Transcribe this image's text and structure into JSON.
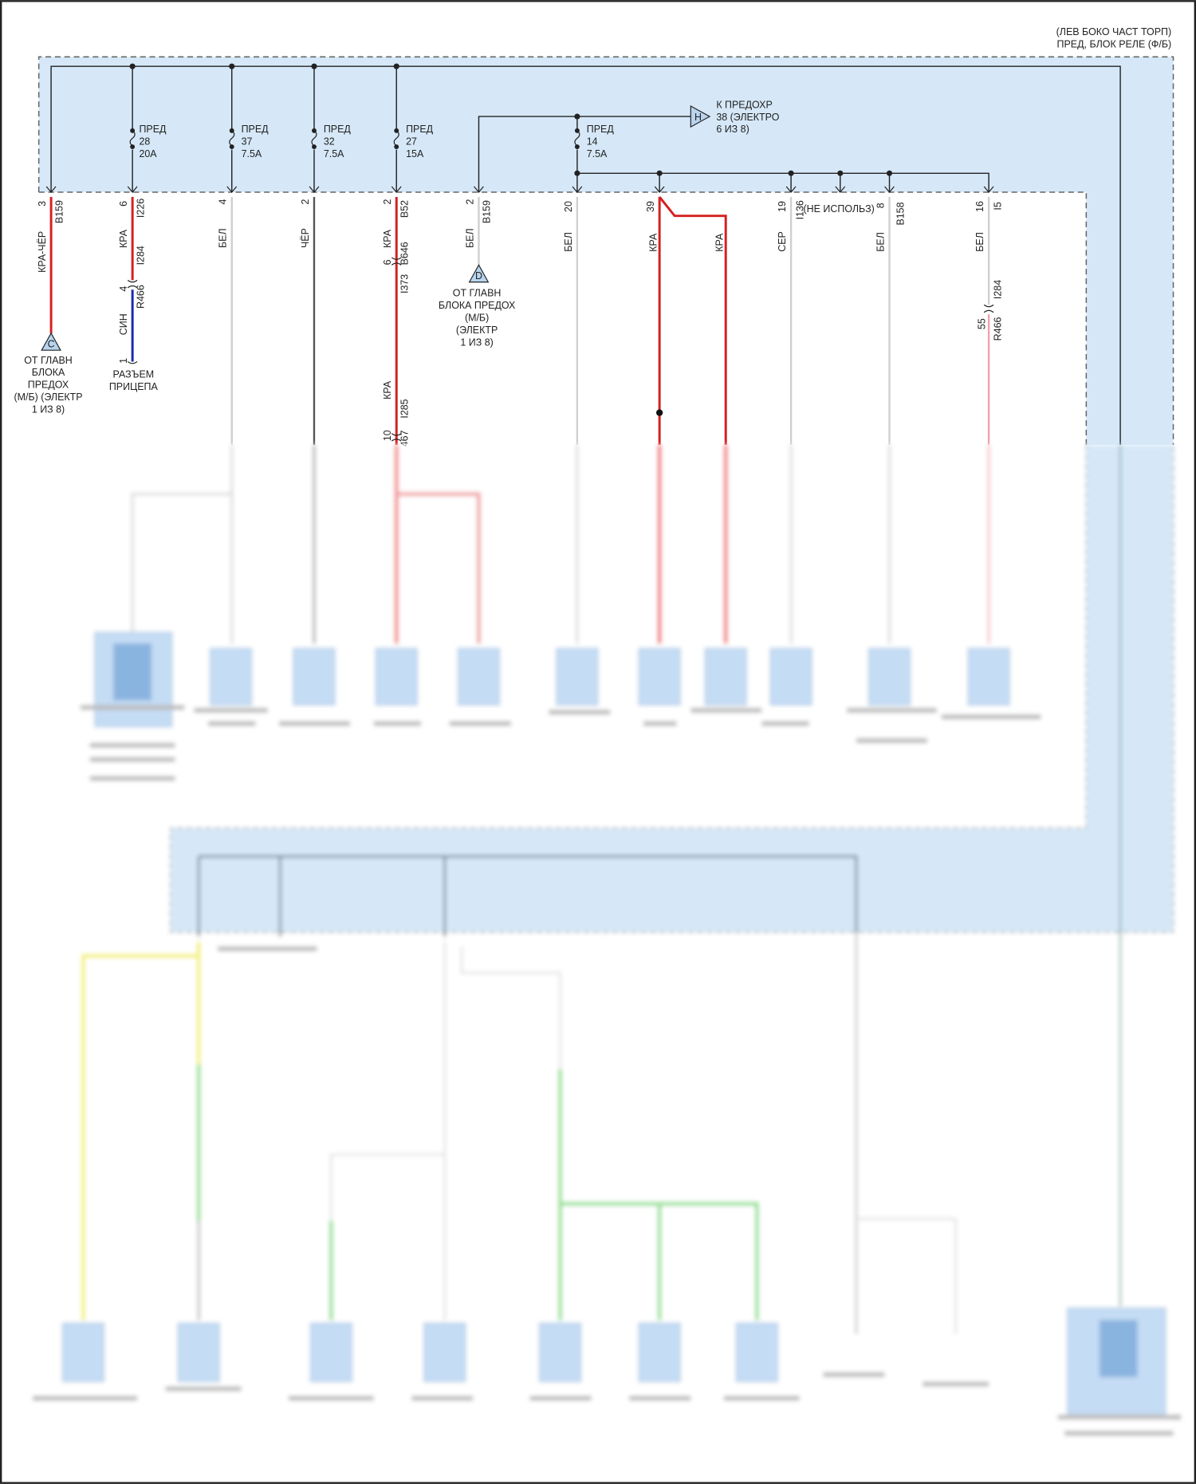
{
  "header": {
    "location": "(ЛЕВ БОКО ЧАСТ ТОРП)",
    "block": "ПРЕД, БЛОК РЕЛЕ (Ф/Б)"
  },
  "fuses": [
    {
      "label": "ПРЕД",
      "number": "28",
      "rating": "20A"
    },
    {
      "label": "ПРЕД",
      "number": "37",
      "rating": "7.5A"
    },
    {
      "label": "ПРЕД",
      "number": "32",
      "rating": "7.5A"
    },
    {
      "label": "ПРЕД",
      "number": "27",
      "rating": "15A"
    },
    {
      "label": "ПРЕД",
      "number": "14",
      "rating": "7.5A"
    }
  ],
  "connector_h": {
    "letter": "H",
    "line1": "К ПРЕДОХР",
    "line2": "38 (ЭЛЕКТРО",
    "line3": "6 ИЗ 8)"
  },
  "connector_c": {
    "letter": "C",
    "lines": [
      "ОТ ГЛАВН",
      "БЛОКА",
      "ПРЕДОХ",
      "(М/Б) (ЭЛЕКТР",
      "1 ИЗ 8)"
    ]
  },
  "connector_d": {
    "letter": "D",
    "lines": [
      "ОТ ГЛАВН",
      "БЛОКА ПРЕДОХ",
      "(М/Б)",
      "(ЭЛЕКТР",
      "1 ИЗ 8)"
    ]
  },
  "trailer": {
    "pin": "1",
    "lines": [
      "РАЗЪЕМ",
      "ПРИЦЕПА"
    ]
  },
  "not_used": "(НЕ ИСПОЛЬЗ)",
  "wires": {
    "w1": {
      "pin": "3",
      "code": "B159",
      "color": "КРА-ЧЁР"
    },
    "w2": {
      "pin": "6",
      "code": "I226",
      "color": "КРА",
      "code2": "I284",
      "pin2": "4",
      "code3": "R466",
      "color2": "СИН"
    },
    "w3": {
      "pin": "4",
      "color": "БЕЛ"
    },
    "w4": {
      "pin": "2",
      "color": "ЧЁР"
    },
    "w5": {
      "pin": "2",
      "code": "B52",
      "color": "КРА",
      "pin2": "6",
      "code2": "B646",
      "code3": "I373",
      "color2": "КРА",
      "code4": "I285",
      "pin3": "10",
      "code5": "467"
    },
    "w6": {
      "pin": "2",
      "code": "B159",
      "color": "БЕЛ"
    },
    "w7": {
      "pin": "20",
      "color": "БЕЛ"
    },
    "w8": {
      "pin": "39",
      "color": "КРА",
      "color2": "КРА"
    },
    "w9": {
      "pin": "19",
      "code": "I136",
      "color": "СЕР"
    },
    "w10": {
      "pin": "8",
      "code": "B158",
      "color": "БЕЛ"
    },
    "w11": {
      "pin": "16",
      "code": "I5",
      "color": "БЕЛ",
      "code2": "I284",
      "pin2": "55",
      "code3": "R466"
    }
  },
  "colors": {
    "block_fill": "#d6e8f8",
    "red_wire": "#d42020",
    "blue_wire": "#1a2ab0",
    "pink_wire": "#f0a0b0",
    "white_wire": "#cfcfcf",
    "black_wire": "#555555",
    "yellow_wire": "#f4f06a",
    "green_wire": "#90e090"
  }
}
